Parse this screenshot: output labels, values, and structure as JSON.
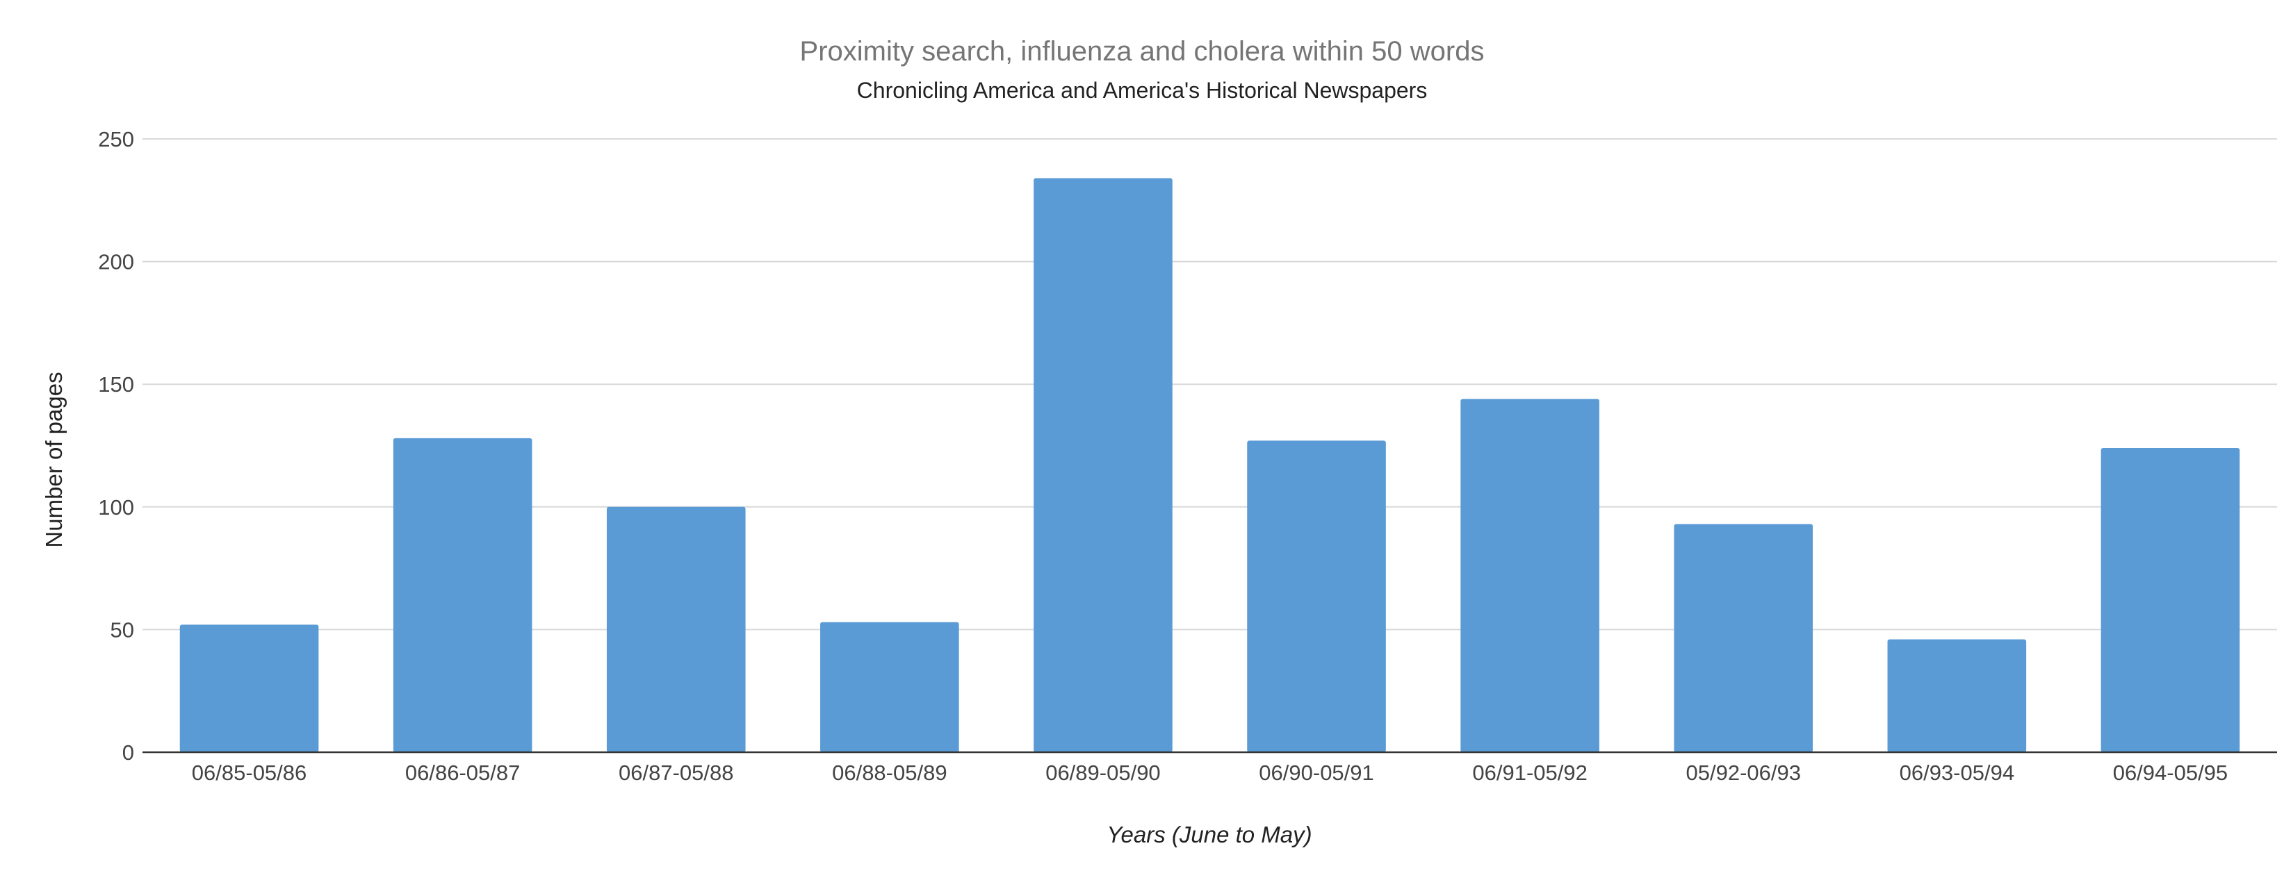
{
  "chart_data": {
    "type": "bar",
    "title": "Proximity search, influenza and cholera within 50 words",
    "subtitle": "Chronicling America and America's Historical Newspapers",
    "xlabel": "Years (June to May)",
    "ylabel": "Number of pages",
    "categories": [
      "06/85-05/86",
      "06/86-05/87",
      "06/87-05/88",
      "06/88-05/89",
      "06/89-05/90",
      "06/90-05/91",
      "06/91-05/92",
      "05/92-06/93",
      "06/93-05/94",
      "06/94-05/95"
    ],
    "values": [
      52,
      128,
      100,
      53,
      234,
      127,
      144,
      93,
      46,
      124
    ],
    "ylim": [
      0,
      250
    ],
    "yticks": [
      "0",
      "50",
      "100",
      "150",
      "200",
      "250"
    ],
    "grid": true,
    "legend": "none",
    "bar_color": "#5B9BD5",
    "grid_color": "#D9D9D9",
    "axis_color": "#333333"
  }
}
